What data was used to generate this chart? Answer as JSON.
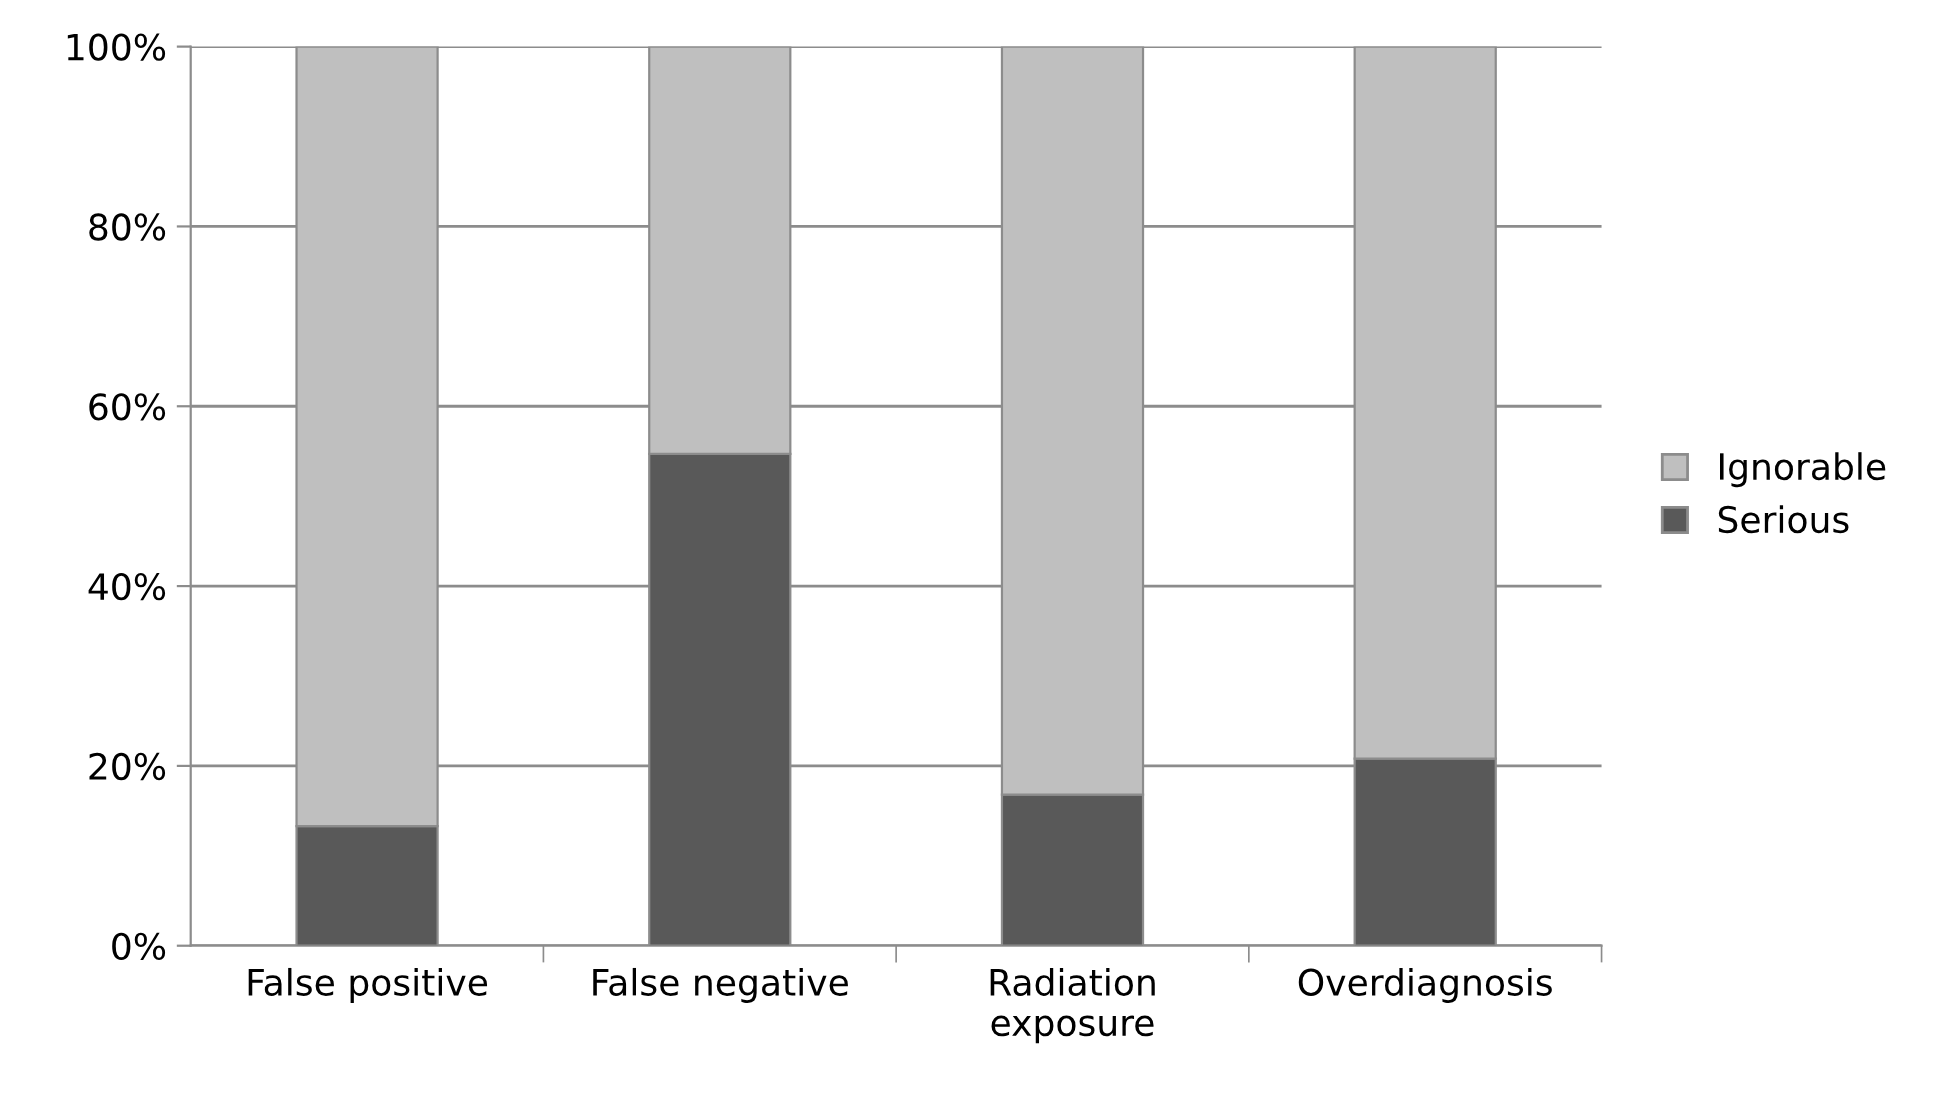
{
  "chart_data": {
    "type": "bar",
    "stacked": true,
    "categories": [
      "False positive",
      "False negative",
      "Radiation\nexposure",
      "Overdiagnosis"
    ],
    "series": [
      {
        "name": "Serious",
        "color": "#595959",
        "values": [
          13.3,
          54.7,
          16.8,
          20.8
        ]
      },
      {
        "name": "Ignorable",
        "color": "#bfbfbf",
        "values": [
          86.7,
          45.3,
          83.2,
          79.2
        ]
      }
    ],
    "ylim": [
      0,
      100
    ],
    "yticks": [
      {
        "value": 0,
        "label": "0%"
      },
      {
        "value": 20,
        "label": "20%"
      },
      {
        "value": 40,
        "label": "40%"
      },
      {
        "value": 60,
        "label": "60%"
      },
      {
        "value": 80,
        "label": "80%"
      },
      {
        "value": 100,
        "label": "100%"
      }
    ],
    "grid": "y",
    "legend": "right"
  }
}
